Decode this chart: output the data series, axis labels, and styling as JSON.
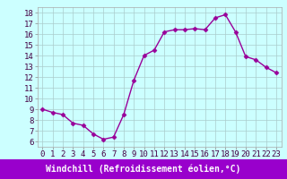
{
  "x": [
    0,
    1,
    2,
    3,
    4,
    5,
    6,
    7,
    8,
    9,
    10,
    11,
    12,
    13,
    14,
    15,
    16,
    17,
    18,
    19,
    20,
    21,
    22,
    23
  ],
  "y": [
    9.0,
    8.7,
    8.5,
    7.7,
    7.5,
    6.7,
    6.2,
    6.4,
    8.5,
    11.7,
    14.0,
    14.5,
    16.2,
    16.4,
    16.4,
    16.5,
    16.4,
    17.5,
    17.8,
    16.2,
    13.9,
    13.6,
    12.9,
    12.4
  ],
  "line_color": "#990099",
  "marker": "D",
  "marker_size": 2.5,
  "bg_color": "#ccffff",
  "grid_color": "#aacccc",
  "xlabel": "Windchill (Refroidissement éolien,°C)",
  "xlim": [
    -0.5,
    23.5
  ],
  "ylim": [
    5.5,
    18.5
  ],
  "yticks": [
    6,
    7,
    8,
    9,
    10,
    11,
    12,
    13,
    14,
    15,
    16,
    17,
    18
  ],
  "xticks": [
    0,
    1,
    2,
    3,
    4,
    5,
    6,
    7,
    8,
    9,
    10,
    11,
    12,
    13,
    14,
    15,
    16,
    17,
    18,
    19,
    20,
    21,
    22,
    23
  ],
  "tick_fontsize": 6.5,
  "xlabel_fontsize": 7,
  "xlabel_bg": "#9900cc",
  "xlabel_fg": "#ffffff",
  "line_width": 1.0
}
